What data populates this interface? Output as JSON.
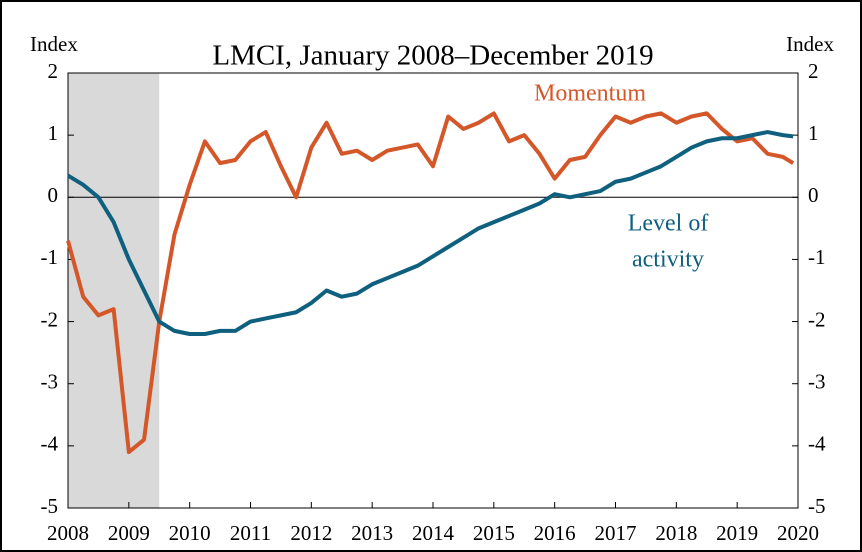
{
  "chart_data": {
    "type": "line",
    "title": "LMCI, January 2008–December 2019",
    "y_label": "Index",
    "y2_label": "Index",
    "xlim": [
      2008,
      2020
    ],
    "xticks": [
      2008,
      2009,
      2010,
      2011,
      2012,
      2013,
      2014,
      2015,
      2016,
      2017,
      2018,
      2019,
      2020
    ],
    "ylim": [
      -5,
      2
    ],
    "yticks": [
      -5,
      -4,
      -3,
      -2,
      -1,
      0,
      1,
      2
    ],
    "y2lim": [
      -5,
      2
    ],
    "y2ticks": [
      -5,
      -4,
      -3,
      -2,
      -1,
      0,
      1,
      2
    ],
    "shade": [
      2008,
      2009.5
    ],
    "shade_color": "#d9d9d9",
    "x": [
      2008,
      2008.25,
      2008.5,
      2008.75,
      2009,
      2009.25,
      2009.5,
      2009.75,
      2010,
      2010.25,
      2010.5,
      2010.75,
      2011,
      2011.25,
      2011.5,
      2011.75,
      2012,
      2012.25,
      2012.5,
      2012.75,
      2013,
      2013.25,
      2013.5,
      2013.75,
      2014,
      2014.25,
      2014.5,
      2014.75,
      2015,
      2015.25,
      2015.5,
      2015.75,
      2016,
      2016.25,
      2016.5,
      2016.75,
      2017,
      2017.25,
      2017.5,
      2017.75,
      2018,
      2018.25,
      2018.5,
      2018.75,
      2019,
      2019.25,
      2019.5,
      2019.75,
      2019.92
    ],
    "series": [
      {
        "name": "Momentum",
        "color": "#d4572a",
        "values": [
          -0.7,
          -1.6,
          -1.9,
          -1.8,
          -4.1,
          -3.9,
          -2.0,
          -0.6,
          0.2,
          0.9,
          0.55,
          0.6,
          0.9,
          1.05,
          0.5,
          0.0,
          0.8,
          1.2,
          0.7,
          0.75,
          0.6,
          0.75,
          0.8,
          0.85,
          0.5,
          1.3,
          1.1,
          1.2,
          1.35,
          0.9,
          1.0,
          0.7,
          0.3,
          0.6,
          0.65,
          1.0,
          1.3,
          1.2,
          1.3,
          1.35,
          1.2,
          1.3,
          1.35,
          1.1,
          0.9,
          0.95,
          0.7,
          0.65,
          0.55
        ]
      },
      {
        "name": "Level of activity",
        "color": "#0f5f7f",
        "values": [
          0.35,
          0.2,
          0.0,
          -0.4,
          -1.0,
          -1.5,
          -2.0,
          -2.15,
          -2.2,
          -2.2,
          -2.15,
          -2.15,
          -2.0,
          -1.95,
          -1.9,
          -1.85,
          -1.7,
          -1.5,
          -1.6,
          -1.55,
          -1.4,
          -1.3,
          -1.2,
          -1.1,
          -0.95,
          -0.8,
          -0.65,
          -0.5,
          -0.4,
          -0.3,
          -0.2,
          -0.1,
          0.05,
          0.0,
          0.05,
          0.1,
          0.25,
          0.3,
          0.4,
          0.5,
          0.65,
          0.8,
          0.9,
          0.95,
          0.95,
          1.0,
          1.05,
          1.0,
          0.98
        ]
      }
    ],
    "annotations": [
      {
        "lines": [
          "Momentum"
        ],
        "series": 0
      },
      {
        "lines": [
          "Level of",
          "activity"
        ],
        "series": 1
      }
    ]
  }
}
